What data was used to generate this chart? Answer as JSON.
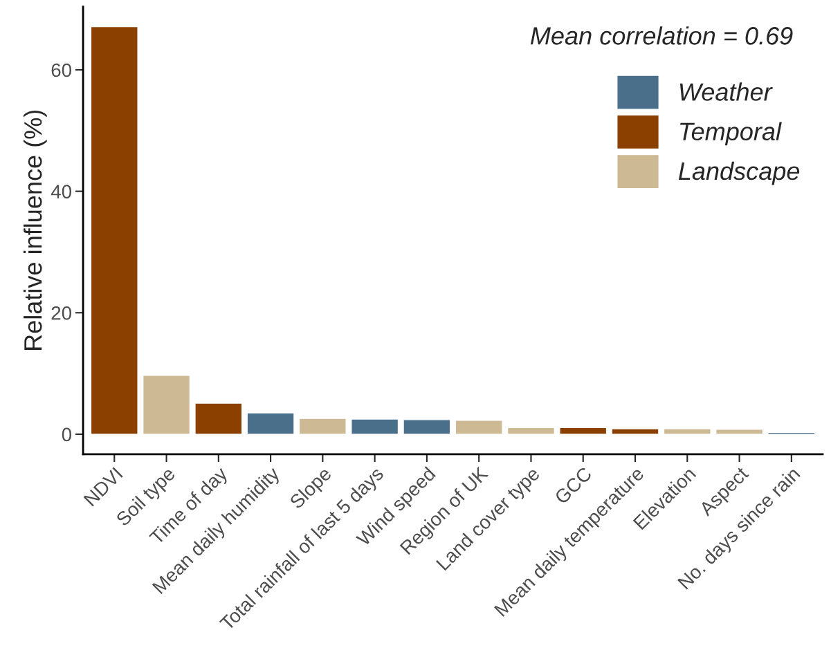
{
  "chart_data": {
    "type": "bar",
    "ylabel": "Relative influence (%)",
    "categories": [
      "NDVI",
      "Soil type",
      "Time of day",
      "Mean daily humidity",
      "Slope",
      "Total rainfall of last 5 days",
      "Wind speed",
      "Region of UK",
      "Land cover type",
      "GCC",
      "Mean daily temperature",
      "Elevation",
      "Aspect",
      "No. days since rain"
    ],
    "series": [
      {
        "name": "Weather",
        "color": "#4a6f8a",
        "values": [
          null,
          null,
          null,
          3.5,
          null,
          2.5,
          2.4,
          null,
          null,
          null,
          null,
          null,
          null,
          0.3
        ]
      },
      {
        "name": "Temporal",
        "color": "#8b4000",
        "values": [
          67.1,
          null,
          5.1,
          null,
          null,
          null,
          null,
          null,
          null,
          1.1,
          0.9,
          null,
          null,
          null
        ]
      },
      {
        "name": "Landscape",
        "color": "#cdb994",
        "values": [
          null,
          9.7,
          null,
          null,
          2.6,
          null,
          null,
          2.3,
          1.1,
          null,
          null,
          0.9,
          0.8,
          null
        ]
      }
    ],
    "ylim": [
      -3.3,
      70.4
    ],
    "yticks": [
      0,
      20,
      40,
      60
    ],
    "grid": false,
    "legend": "right",
    "annotations": [
      "Mean correlation = 0.69"
    ]
  }
}
